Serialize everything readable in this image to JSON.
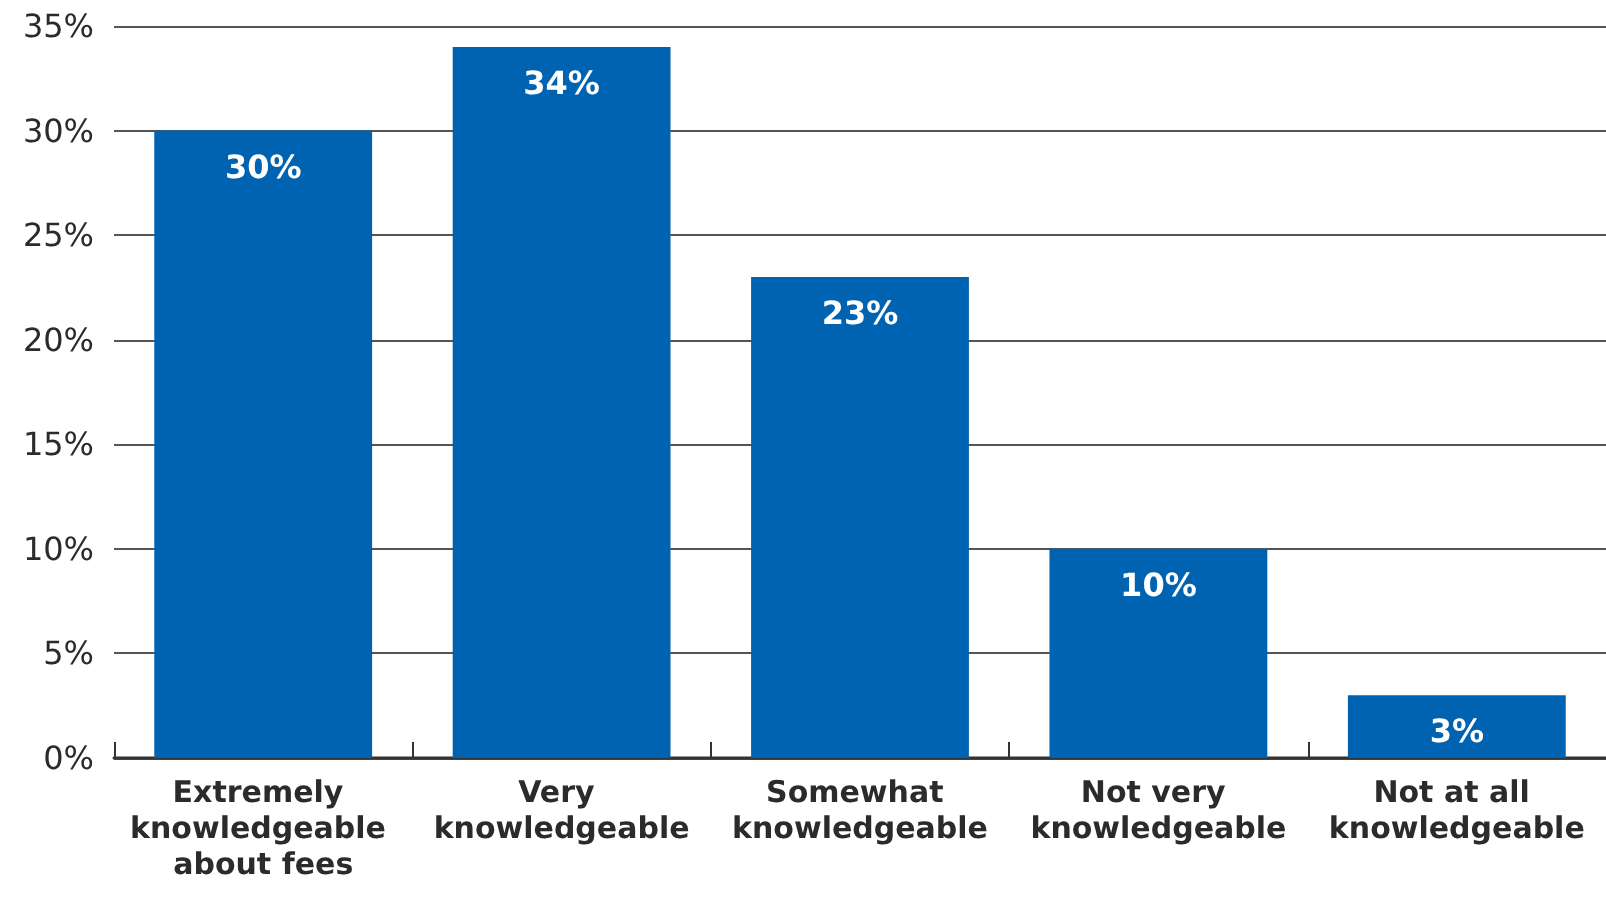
{
  "chart_data": {
    "type": "bar",
    "categories": [
      "Extremely knowledgeable about fees",
      "Very knowledgeable",
      "Somewhat knowledgeable",
      "Not very knowledgeable",
      "Not at all knowledgeable"
    ],
    "values": [
      30,
      34,
      23,
      10,
      3
    ],
    "color": "#0063b1",
    "value_labels": [
      "30%",
      "34%",
      "23%",
      "10%",
      "3%"
    ],
    "ylim": [
      0,
      35
    ],
    "yticks": [
      {
        "value": 0,
        "label": "0%"
      },
      {
        "value": 5,
        "label": "5%"
      },
      {
        "value": 10,
        "label": "10%"
      },
      {
        "value": 15,
        "label": "15%"
      },
      {
        "value": 20,
        "label": "20%"
      },
      {
        "value": 25,
        "label": "25%"
      },
      {
        "value": 30,
        "label": "30%"
      },
      {
        "value": 35,
        "label": "35%"
      }
    ],
    "grid": "y"
  }
}
